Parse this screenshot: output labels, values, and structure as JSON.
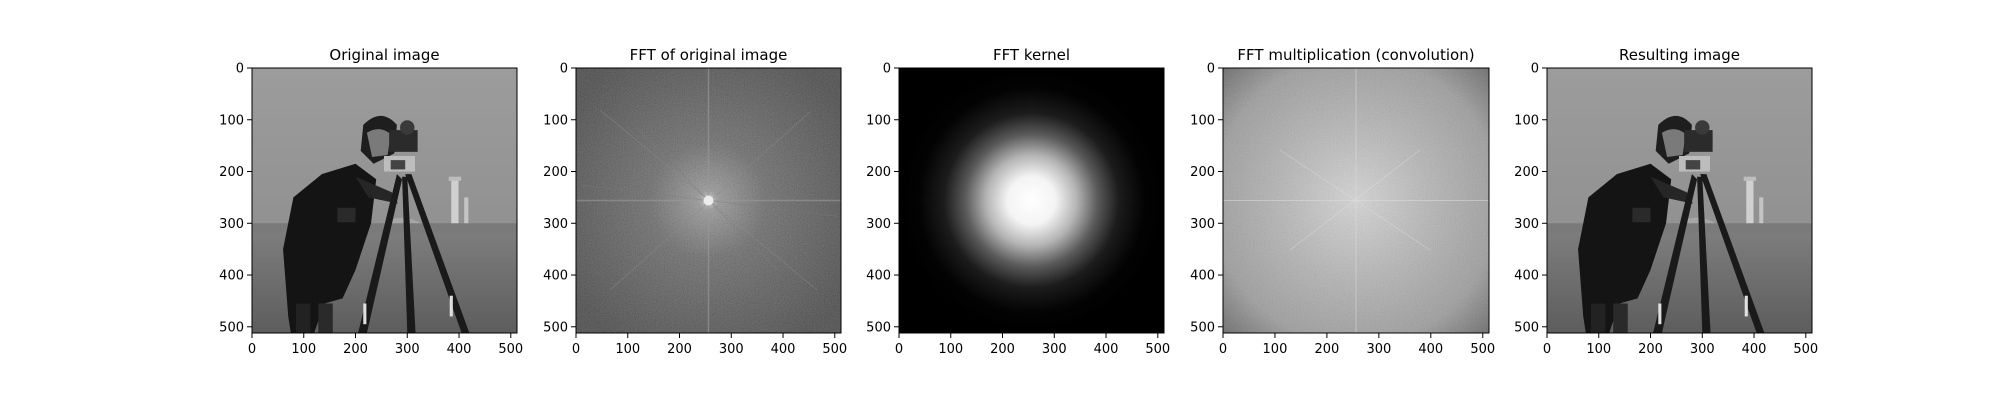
{
  "chart_data": [
    {
      "type": "image",
      "title": "Original image",
      "image": "cameraman-grayscale",
      "xlim": [
        0,
        512
      ],
      "ylim": [
        512,
        0
      ],
      "xticks": [
        0,
        100,
        200,
        300,
        400,
        500
      ],
      "yticks": [
        0,
        100,
        200,
        300,
        400,
        500
      ],
      "colormap": "gray"
    },
    {
      "type": "image",
      "title": "FFT of original image",
      "image": "log-magnitude-spectrum-of-original",
      "xlim": [
        0,
        512
      ],
      "ylim": [
        512,
        0
      ],
      "xticks": [
        0,
        100,
        200,
        300,
        400,
        500
      ],
      "yticks": [
        0,
        100,
        200,
        300,
        400,
        500
      ],
      "colormap": "gray"
    },
    {
      "type": "image",
      "title": "FFT kernel",
      "image": "gaussian-blob-centered",
      "xlim": [
        0,
        512
      ],
      "ylim": [
        512,
        0
      ],
      "xticks": [
        0,
        100,
        200,
        300,
        400,
        500
      ],
      "yticks": [
        0,
        100,
        200,
        300,
        400,
        500
      ],
      "colormap": "gray"
    },
    {
      "type": "image",
      "title": "FFT multiplication (convolution)",
      "image": "log-magnitude-of-product-spectrum",
      "xlim": [
        0,
        512
      ],
      "ylim": [
        512,
        0
      ],
      "xticks": [
        0,
        100,
        200,
        300,
        400,
        500
      ],
      "yticks": [
        0,
        100,
        200,
        300,
        400,
        500
      ],
      "colormap": "gray"
    },
    {
      "type": "image",
      "title": "Resulting image",
      "image": "cameraman-grayscale",
      "xlim": [
        0,
        512
      ],
      "ylim": [
        512,
        0
      ],
      "xticks": [
        0,
        100,
        200,
        300,
        400,
        500
      ],
      "yticks": [
        0,
        100,
        200,
        300,
        400,
        500
      ],
      "colormap": "gray"
    }
  ],
  "colors": {
    "sky": "#8a8a8a",
    "grass": "#6e6e6e",
    "coat": "#141414",
    "spectrum_bg": "#2e2e2e",
    "spectrum_center": "#d8d8d8",
    "kernel_bg": "#000000",
    "kernel_peak": "#ffffff",
    "product_edge": "#6a6a6a",
    "product_center": "#d2d2d2"
  }
}
